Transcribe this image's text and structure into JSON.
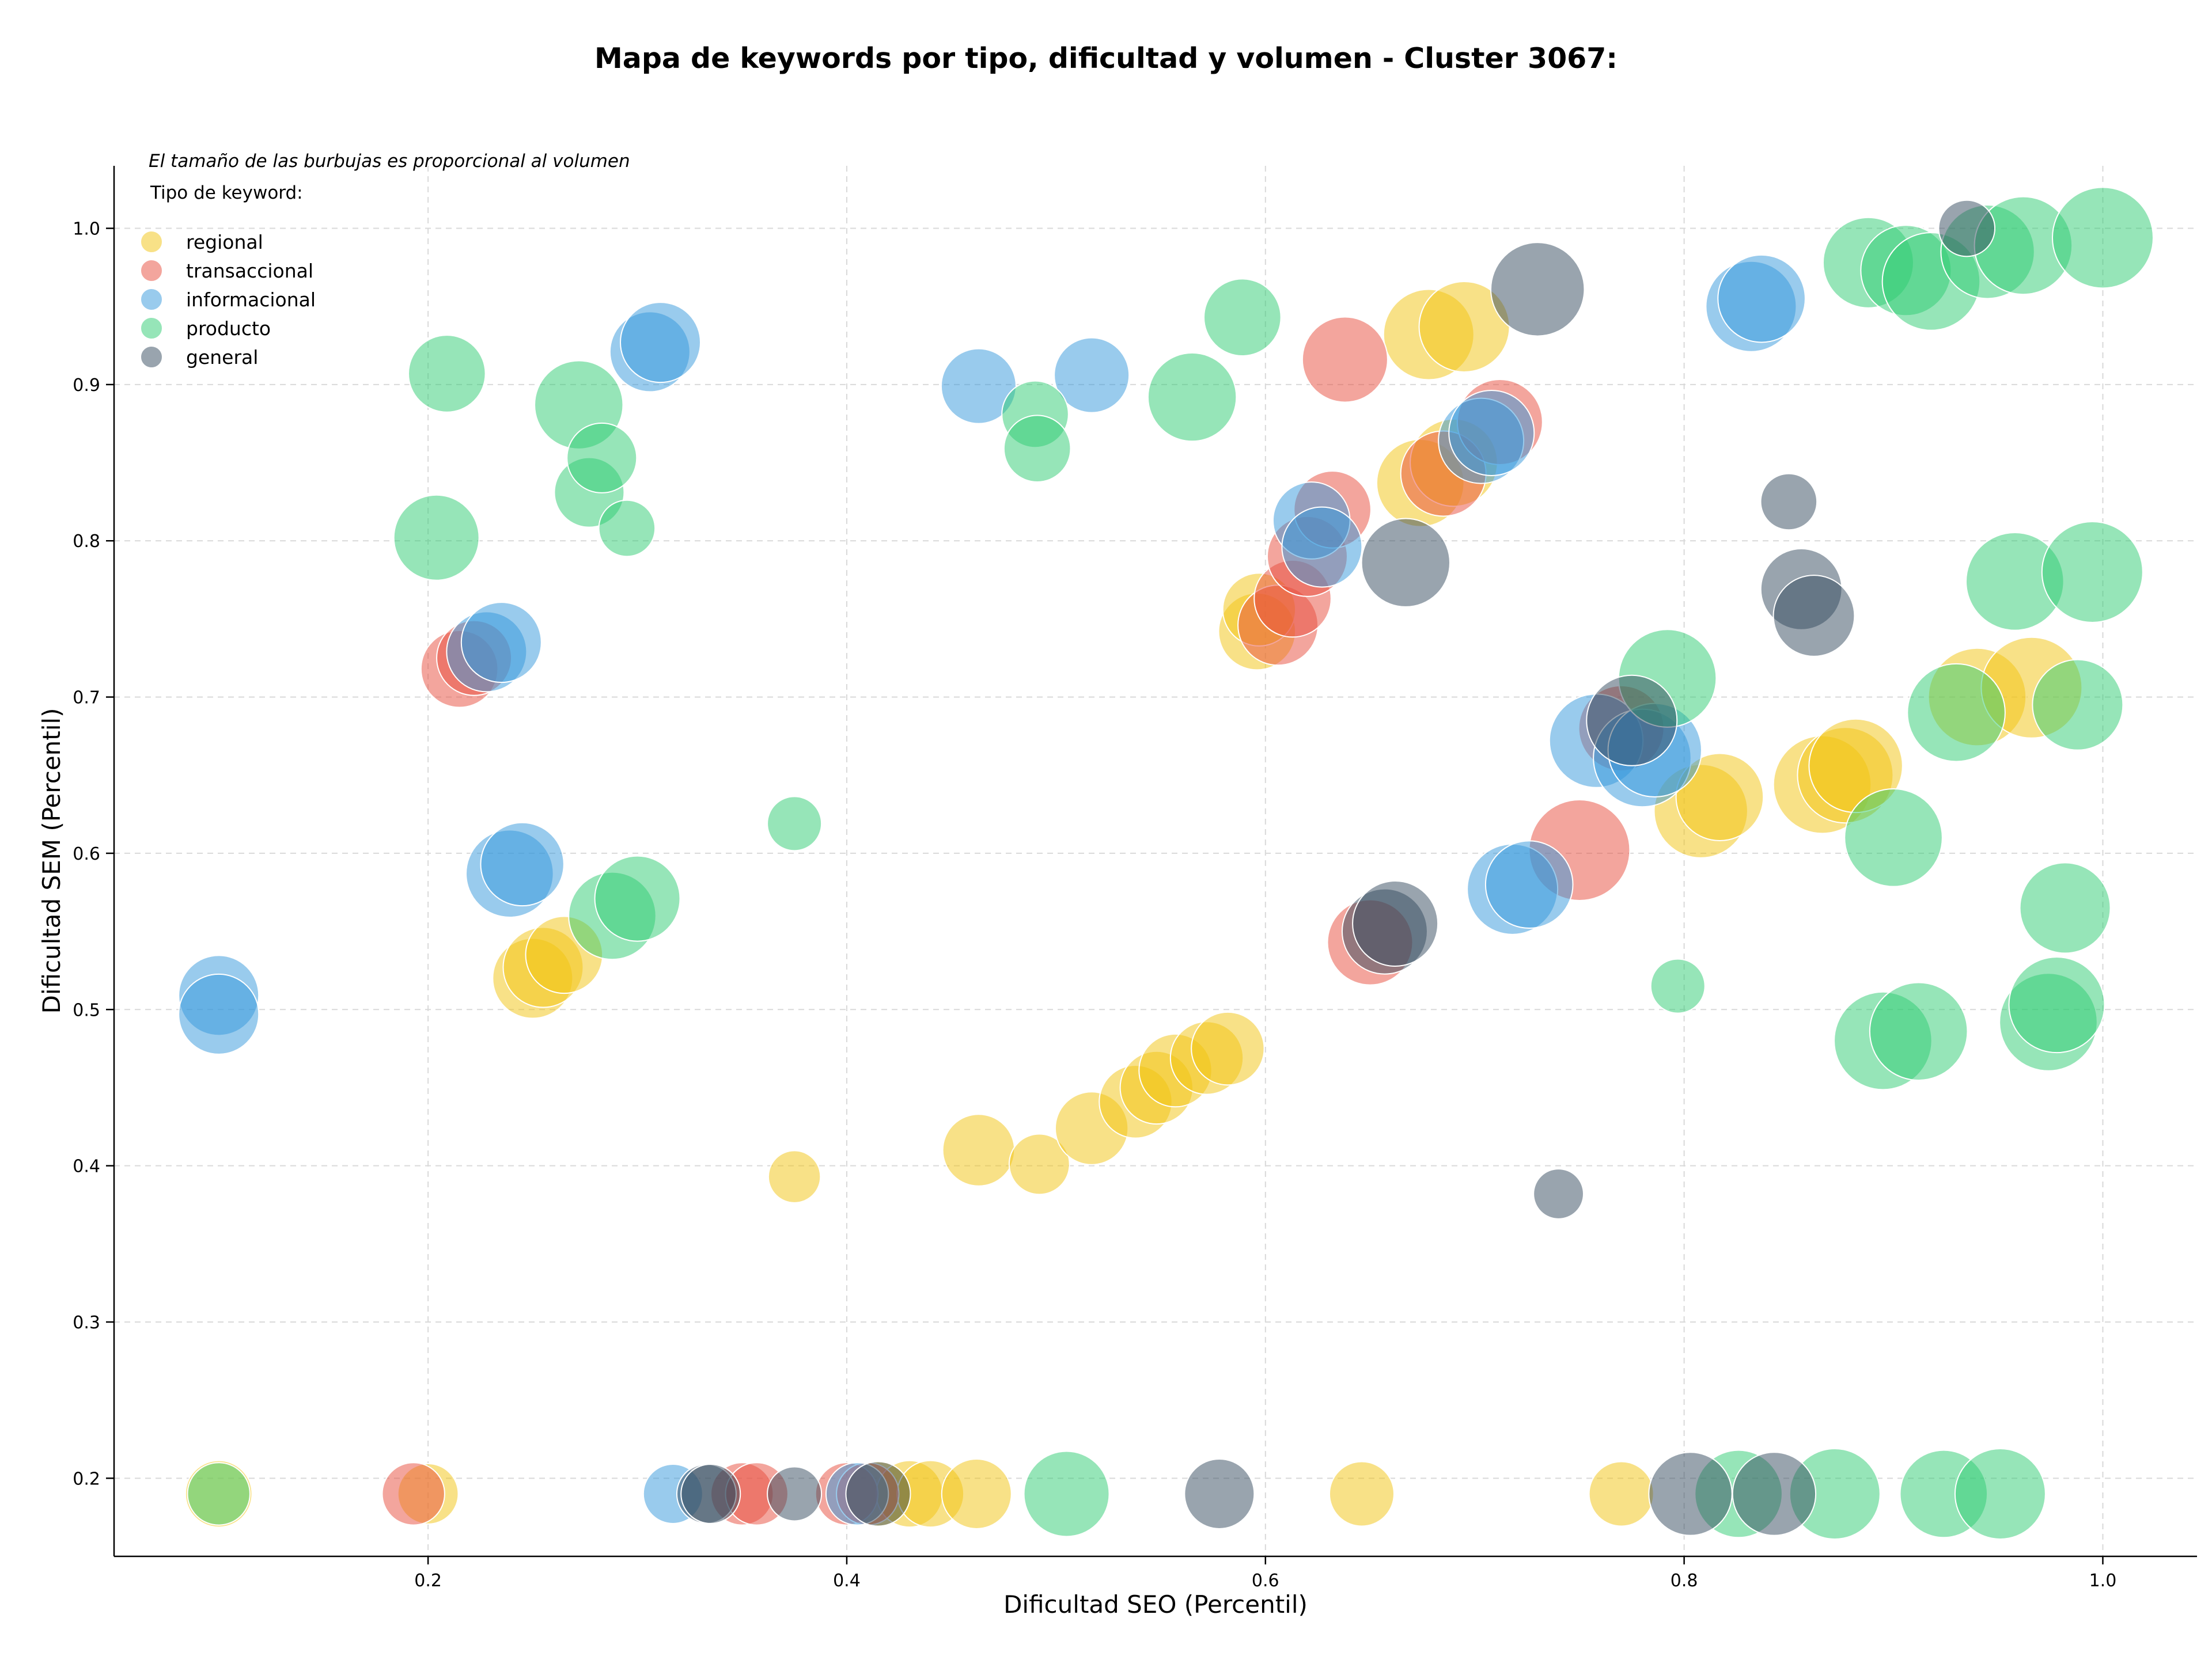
{
  "chart_data": {
    "type": "scatter",
    "title": "Mapa de keywords por tipo, dificultad y volumen - Cluster 3067:",
    "subtitle": "El tamaño de las burbujas es proporcional al volumen",
    "xlabel": "Dificultad SEO (Percentil)",
    "ylabel": "Dificultad SEM (Percentil)",
    "xlim": [
      0.05,
      1.045
    ],
    "ylim": [
      0.15,
      1.04
    ],
    "xticks": [
      0.2,
      0.4,
      0.6,
      0.8,
      1.0
    ],
    "xtick_labels": [
      "0.2",
      "0.4",
      "0.6",
      "0.8",
      "1.0"
    ],
    "yticks": [
      0.2,
      0.3,
      0.4,
      0.5,
      0.6,
      0.7,
      0.8,
      0.9,
      1.0
    ],
    "ytick_labels": [
      "0.2",
      "0.3",
      "0.4",
      "0.5",
      "0.6",
      "0.7",
      "0.8",
      "0.9",
      "1.0"
    ],
    "grid": true,
    "legend": {
      "title": "Tipo de keyword:",
      "position": "top-left"
    },
    "series": [
      {
        "name": "regional",
        "color": "#f1c40f",
        "points": [
          {
            "x": 0.1,
            "y": 0.19,
            "size": 0.42
          },
          {
            "x": 0.2,
            "y": 0.19,
            "size": 0.36
          },
          {
            "x": 0.25,
            "y": 0.52,
            "size": 0.55
          },
          {
            "x": 0.255,
            "y": 0.527,
            "size": 0.55
          },
          {
            "x": 0.265,
            "y": 0.535,
            "size": 0.52
          },
          {
            "x": 0.375,
            "y": 0.393,
            "size": 0.28
          },
          {
            "x": 0.415,
            "y": 0.19,
            "size": 0.42
          },
          {
            "x": 0.43,
            "y": 0.19,
            "size": 0.42
          },
          {
            "x": 0.44,
            "y": 0.19,
            "size": 0.42
          },
          {
            "x": 0.462,
            "y": 0.19,
            "size": 0.45
          },
          {
            "x": 0.463,
            "y": 0.41,
            "size": 0.47
          },
          {
            "x": 0.492,
            "y": 0.401,
            "size": 0.36
          },
          {
            "x": 0.517,
            "y": 0.424,
            "size": 0.48
          },
          {
            "x": 0.538,
            "y": 0.441,
            "size": 0.48
          },
          {
            "x": 0.548,
            "y": 0.45,
            "size": 0.48
          },
          {
            "x": 0.557,
            "y": 0.461,
            "size": 0.48
          },
          {
            "x": 0.572,
            "y": 0.469,
            "size": 0.48
          },
          {
            "x": 0.582,
            "y": 0.475,
            "size": 0.48
          },
          {
            "x": 0.596,
            "y": 0.742,
            "size": 0.52
          },
          {
            "x": 0.597,
            "y": 0.756,
            "size": 0.48
          },
          {
            "x": 0.646,
            "y": 0.19,
            "size": 0.4
          },
          {
            "x": 0.674,
            "y": 0.837,
            "size": 0.62
          },
          {
            "x": 0.69,
            "y": 0.85,
            "size": 0.62
          },
          {
            "x": 0.678,
            "y": 0.932,
            "size": 0.65
          },
          {
            "x": 0.695,
            "y": 0.937,
            "size": 0.65
          },
          {
            "x": 0.77,
            "y": 0.19,
            "size": 0.4
          },
          {
            "x": 0.808,
            "y": 0.627,
            "size": 0.68
          },
          {
            "x": 0.817,
            "y": 0.636,
            "size": 0.62
          },
          {
            "x": 0.866,
            "y": 0.644,
            "size": 0.72
          },
          {
            "x": 0.877,
            "y": 0.65,
            "size": 0.7
          },
          {
            "x": 0.882,
            "y": 0.656,
            "size": 0.68
          },
          {
            "x": 0.94,
            "y": 0.7,
            "size": 0.72
          },
          {
            "x": 0.966,
            "y": 0.706,
            "size": 0.75
          }
        ]
      },
      {
        "name": "transaccional",
        "color": "#e74c3c",
        "points": [
          {
            "x": 0.193,
            "y": 0.19,
            "size": 0.38
          },
          {
            "x": 0.215,
            "y": 0.718,
            "size": 0.52
          },
          {
            "x": 0.222,
            "y": 0.725,
            "size": 0.5
          },
          {
            "x": 0.35,
            "y": 0.19,
            "size": 0.38
          },
          {
            "x": 0.357,
            "y": 0.19,
            "size": 0.38
          },
          {
            "x": 0.4,
            "y": 0.19,
            "size": 0.38
          },
          {
            "x": 0.41,
            "y": 0.19,
            "size": 0.38
          },
          {
            "x": 0.606,
            "y": 0.746,
            "size": 0.55
          },
          {
            "x": 0.613,
            "y": 0.763,
            "size": 0.52
          },
          {
            "x": 0.62,
            "y": 0.79,
            "size": 0.55
          },
          {
            "x": 0.632,
            "y": 0.82,
            "size": 0.52
          },
          {
            "x": 0.638,
            "y": 0.916,
            "size": 0.6
          },
          {
            "x": 0.65,
            "y": 0.543,
            "size": 0.6
          },
          {
            "x": 0.685,
            "y": 0.843,
            "size": 0.6
          },
          {
            "x": 0.712,
            "y": 0.876,
            "size": 0.6
          },
          {
            "x": 0.75,
            "y": 0.602,
            "size": 0.75
          },
          {
            "x": 0.77,
            "y": 0.68,
            "size": 0.6
          }
        ]
      },
      {
        "name": "informacional",
        "color": "#3498db",
        "points": [
          {
            "x": 0.1,
            "y": 0.509,
            "size": 0.55
          },
          {
            "x": 0.1,
            "y": 0.497,
            "size": 0.55
          },
          {
            "x": 0.228,
            "y": 0.729,
            "size": 0.55
          },
          {
            "x": 0.235,
            "y": 0.735,
            "size": 0.55
          },
          {
            "x": 0.239,
            "y": 0.587,
            "size": 0.62
          },
          {
            "x": 0.245,
            "y": 0.593,
            "size": 0.58
          },
          {
            "x": 0.306,
            "y": 0.921,
            "size": 0.55
          },
          {
            "x": 0.311,
            "y": 0.927,
            "size": 0.55
          },
          {
            "x": 0.317,
            "y": 0.19,
            "size": 0.35
          },
          {
            "x": 0.405,
            "y": 0.19,
            "size": 0.38
          },
          {
            "x": 0.463,
            "y": 0.899,
            "size": 0.5
          },
          {
            "x": 0.517,
            "y": 0.906,
            "size": 0.5
          },
          {
            "x": 0.622,
            "y": 0.813,
            "size": 0.52
          },
          {
            "x": 0.627,
            "y": 0.796,
            "size": 0.55
          },
          {
            "x": 0.703,
            "y": 0.864,
            "size": 0.6
          },
          {
            "x": 0.708,
            "y": 0.869,
            "size": 0.6
          },
          {
            "x": 0.718,
            "y": 0.577,
            "size": 0.65
          },
          {
            "x": 0.726,
            "y": 0.58,
            "size": 0.62
          },
          {
            "x": 0.758,
            "y": 0.672,
            "size": 0.68
          },
          {
            "x": 0.78,
            "y": 0.661,
            "size": 0.72
          },
          {
            "x": 0.786,
            "y": 0.666,
            "size": 0.68
          },
          {
            "x": 0.832,
            "y": 0.95,
            "size": 0.65
          },
          {
            "x": 0.837,
            "y": 0.955,
            "size": 0.62
          }
        ]
      },
      {
        "name": "producto",
        "color": "#2ecc71",
        "points": [
          {
            "x": 0.1,
            "y": 0.19,
            "size": 0.38
          },
          {
            "x": 0.204,
            "y": 0.802,
            "size": 0.6
          },
          {
            "x": 0.209,
            "y": 0.907,
            "size": 0.52
          },
          {
            "x": 0.272,
            "y": 0.887,
            "size": 0.63
          },
          {
            "x": 0.277,
            "y": 0.831,
            "size": 0.45
          },
          {
            "x": 0.283,
            "y": 0.853,
            "size": 0.45
          },
          {
            "x": 0.288,
            "y": 0.56,
            "size": 0.62
          },
          {
            "x": 0.295,
            "y": 0.808,
            "size": 0.32
          },
          {
            "x": 0.3,
            "y": 0.571,
            "size": 0.6
          },
          {
            "x": 0.375,
            "y": 0.619,
            "size": 0.3
          },
          {
            "x": 0.49,
            "y": 0.881,
            "size": 0.42
          },
          {
            "x": 0.491,
            "y": 0.859,
            "size": 0.42
          },
          {
            "x": 0.505,
            "y": 0.19,
            "size": 0.6
          },
          {
            "x": 0.565,
            "y": 0.892,
            "size": 0.63
          },
          {
            "x": 0.589,
            "y": 0.943,
            "size": 0.52
          },
          {
            "x": 0.792,
            "y": 0.712,
            "size": 0.72
          },
          {
            "x": 0.797,
            "y": 0.515,
            "size": 0.3
          },
          {
            "x": 0.826,
            "y": 0.19,
            "size": 0.62
          },
          {
            "x": 0.872,
            "y": 0.19,
            "size": 0.65
          },
          {
            "x": 0.888,
            "y": 0.978,
            "size": 0.65
          },
          {
            "x": 0.895,
            "y": 0.48,
            "size": 0.72
          },
          {
            "x": 0.9,
            "y": 0.61,
            "size": 0.72
          },
          {
            "x": 0.906,
            "y": 0.973,
            "size": 0.65
          },
          {
            "x": 0.912,
            "y": 0.486,
            "size": 0.72
          },
          {
            "x": 0.918,
            "y": 0.966,
            "size": 0.72
          },
          {
            "x": 0.924,
            "y": 0.19,
            "size": 0.62
          },
          {
            "x": 0.93,
            "y": 0.69,
            "size": 0.72
          },
          {
            "x": 0.945,
            "y": 0.985,
            "size": 0.68
          },
          {
            "x": 0.951,
            "y": 0.19,
            "size": 0.65
          },
          {
            "x": 0.958,
            "y": 0.774,
            "size": 0.72
          },
          {
            "x": 0.962,
            "y": 0.989,
            "size": 0.72
          },
          {
            "x": 0.974,
            "y": 0.492,
            "size": 0.72
          },
          {
            "x": 0.978,
            "y": 0.503,
            "size": 0.7
          },
          {
            "x": 0.982,
            "y": 0.565,
            "size": 0.65
          },
          {
            "x": 0.988,
            "y": 0.695,
            "size": 0.65
          },
          {
            "x": 0.995,
            "y": 0.78,
            "size": 0.75
          },
          {
            "x": 1.0,
            "y": 0.994,
            "size": 0.75
          }
        ]
      },
      {
        "name": "general",
        "color": "#34495e",
        "points": [
          {
            "x": 0.333,
            "y": 0.19,
            "size": 0.35
          },
          {
            "x": 0.335,
            "y": 0.19,
            "size": 0.35
          },
          {
            "x": 0.375,
            "y": 0.19,
            "size": 0.3
          },
          {
            "x": 0.415,
            "y": 0.19,
            "size": 0.4
          },
          {
            "x": 0.578,
            "y": 0.19,
            "size": 0.45
          },
          {
            "x": 0.657,
            "y": 0.55,
            "size": 0.6
          },
          {
            "x": 0.662,
            "y": 0.555,
            "size": 0.6
          },
          {
            "x": 0.667,
            "y": 0.786,
            "size": 0.63
          },
          {
            "x": 0.73,
            "y": 0.961,
            "size": 0.68
          },
          {
            "x": 0.74,
            "y": 0.382,
            "size": 0.26
          },
          {
            "x": 0.775,
            "y": 0.685,
            "size": 0.65
          },
          {
            "x": 0.803,
            "y": 0.19,
            "size": 0.58
          },
          {
            "x": 0.843,
            "y": 0.19,
            "size": 0.58
          },
          {
            "x": 0.85,
            "y": 0.825,
            "size": 0.32
          },
          {
            "x": 0.856,
            "y": 0.769,
            "size": 0.56
          },
          {
            "x": 0.862,
            "y": 0.752,
            "size": 0.56
          },
          {
            "x": 0.935,
            "y": 1.0,
            "size": 0.32
          }
        ]
      }
    ]
  }
}
